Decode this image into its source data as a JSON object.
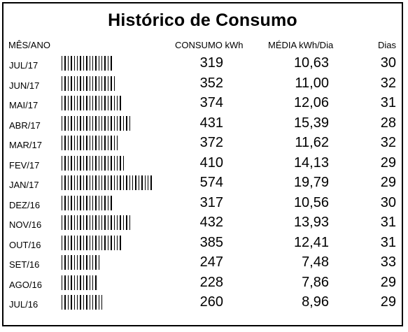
{
  "title": "Histórico de Consumo",
  "headers": {
    "month": "MÊS/ANO",
    "consumo": "CONSUMO kWh",
    "media": "MÉDIA kWh/Dia",
    "dias": "Dias"
  },
  "rows": [
    {
      "month": "JUL/17",
      "consumo": "319",
      "media": "10,63",
      "dias": "30",
      "bar_level": 319
    },
    {
      "month": "JUN/17",
      "consumo": "352",
      "media": "11,00",
      "dias": "32",
      "bar_level": 352
    },
    {
      "month": "MAI/17",
      "consumo": "374",
      "media": "12,06",
      "dias": "31",
      "bar_level": 374
    },
    {
      "month": "ABR/17",
      "consumo": "431",
      "media": "15,39",
      "dias": "28",
      "bar_level": 431
    },
    {
      "month": "MAR/17",
      "consumo": "372",
      "media": "11,62",
      "dias": "32",
      "bar_level": 372
    },
    {
      "month": "FEV/17",
      "consumo": "410",
      "media": "14,13",
      "dias": "29",
      "bar_level": 410
    },
    {
      "month": "JAN/17",
      "consumo": "574",
      "media": "19,79",
      "dias": "29",
      "bar_level": 574
    },
    {
      "month": "DEZ/16",
      "consumo": "317",
      "media": "10,56",
      "dias": "30",
      "bar_level": 317
    },
    {
      "month": "NOV/16",
      "consumo": "432",
      "media": "13,93",
      "dias": "31",
      "bar_level": 432
    },
    {
      "month": "OUT/16",
      "consumo": "385",
      "media": "12,41",
      "dias": "31",
      "bar_level": 385
    },
    {
      "month": "SET/16",
      "consumo": "247",
      "media": "7,48",
      "dias": "33",
      "bar_level": 247
    },
    {
      "month": "AGO/16",
      "consumo": "228",
      "media": "7,86",
      "dias": "29",
      "bar_level": 228
    },
    {
      "month": "JUL/16",
      "consumo": "260",
      "media": "8,96",
      "dias": "29",
      "bar_level": 260
    }
  ]
}
